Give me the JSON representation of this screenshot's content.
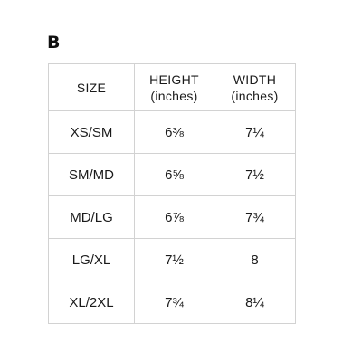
{
  "section_label": "B",
  "table": {
    "headers": {
      "size": "SIZE",
      "height_line1": "HEIGHT",
      "height_line2": "(inches)",
      "width_line1": "WIDTH",
      "width_line2": "(inches)"
    },
    "rows": [
      {
        "size": "XS/SM",
        "height": "6⅜",
        "width": "7¼"
      },
      {
        "size": "SM/MD",
        "height": "6⅝",
        "width": "7½"
      },
      {
        "size": "MD/LG",
        "height": "6⅞",
        "width": "7¾"
      },
      {
        "size": "LG/XL",
        "height": "7½",
        "width": "8"
      },
      {
        "size": "XL/2XL",
        "height": "7¾",
        "width": "8¼"
      }
    ]
  }
}
